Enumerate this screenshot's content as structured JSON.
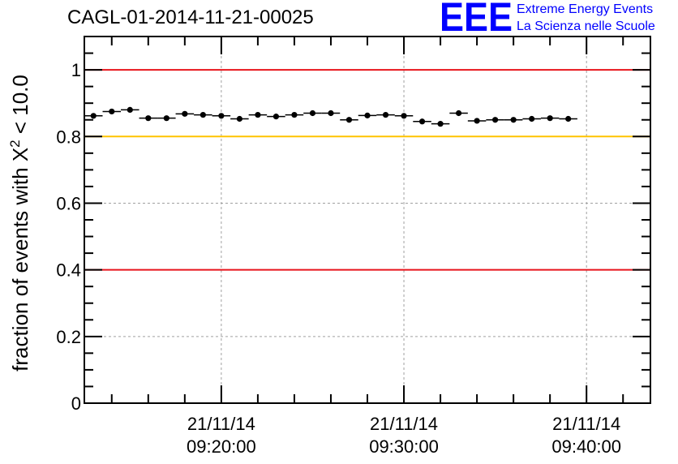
{
  "header": {
    "title": "CAGL-01-2014-11-21-00025",
    "logo_text": "EEE",
    "logo_line1": "Extreme Energy Events",
    "logo_line2": "La Scienza nelle Scuole",
    "logo_color": "#0000ff"
  },
  "chart_data": {
    "type": "scatter",
    "title": "CAGL-01-2014-11-21-00025",
    "xlabel": "",
    "ylabel": "fraction of events with X² < 10.0",
    "ylabel_parts": {
      "pre": "fraction of events with X",
      "sup": "2",
      "post": " < 10.0"
    },
    "x_unit": "minutes",
    "xlim": [
      "09:12:30",
      "09:43:30"
    ],
    "ylim": [
      0,
      1.1
    ],
    "y_ticks": [
      0,
      0.2,
      0.4,
      0.6,
      0.8,
      1
    ],
    "y_tick_labels": [
      "0",
      "0.2",
      "0.4",
      "0.6",
      "0.8",
      "1"
    ],
    "x_ticks": [
      {
        "x": "09:20:00",
        "date": "21/11/14",
        "time": "09:20:00"
      },
      {
        "x": "09:30:00",
        "date": "21/11/14",
        "time": "09:30:00"
      },
      {
        "x": "09:40:00",
        "date": "21/11/14",
        "time": "09:40:00"
      }
    ],
    "bin_width_minutes": 1,
    "grid": true,
    "reference_lines": [
      {
        "y": 1.0,
        "color": "#e8141c"
      },
      {
        "y": 0.8,
        "color": "#ffc400"
      },
      {
        "y": 0.4,
        "color": "#e8141c"
      }
    ],
    "points": [
      {
        "x": "09:13:00",
        "y": 0.862
      },
      {
        "x": "09:14:00",
        "y": 0.875
      },
      {
        "x": "09:15:00",
        "y": 0.88
      },
      {
        "x": "09:16:00",
        "y": 0.855
      },
      {
        "x": "09:17:00",
        "y": 0.855
      },
      {
        "x": "09:18:00",
        "y": 0.868
      },
      {
        "x": "09:19:00",
        "y": 0.865
      },
      {
        "x": "09:20:00",
        "y": 0.862
      },
      {
        "x": "09:21:00",
        "y": 0.853
      },
      {
        "x": "09:22:00",
        "y": 0.865
      },
      {
        "x": "09:23:00",
        "y": 0.86
      },
      {
        "x": "09:24:00",
        "y": 0.865
      },
      {
        "x": "09:25:00",
        "y": 0.87
      },
      {
        "x": "09:26:00",
        "y": 0.87
      },
      {
        "x": "09:27:00",
        "y": 0.85
      },
      {
        "x": "09:28:00",
        "y": 0.863
      },
      {
        "x": "09:29:00",
        "y": 0.865
      },
      {
        "x": "09:30:00",
        "y": 0.862
      },
      {
        "x": "09:31:00",
        "y": 0.845
      },
      {
        "x": "09:32:00",
        "y": 0.838
      },
      {
        "x": "09:33:00",
        "y": 0.87
      },
      {
        "x": "09:34:00",
        "y": 0.847
      },
      {
        "x": "09:35:00",
        "y": 0.85
      },
      {
        "x": "09:36:00",
        "y": 0.85
      },
      {
        "x": "09:37:00",
        "y": 0.853
      },
      {
        "x": "09:38:00",
        "y": 0.855
      },
      {
        "x": "09:39:00",
        "y": 0.853
      }
    ]
  }
}
